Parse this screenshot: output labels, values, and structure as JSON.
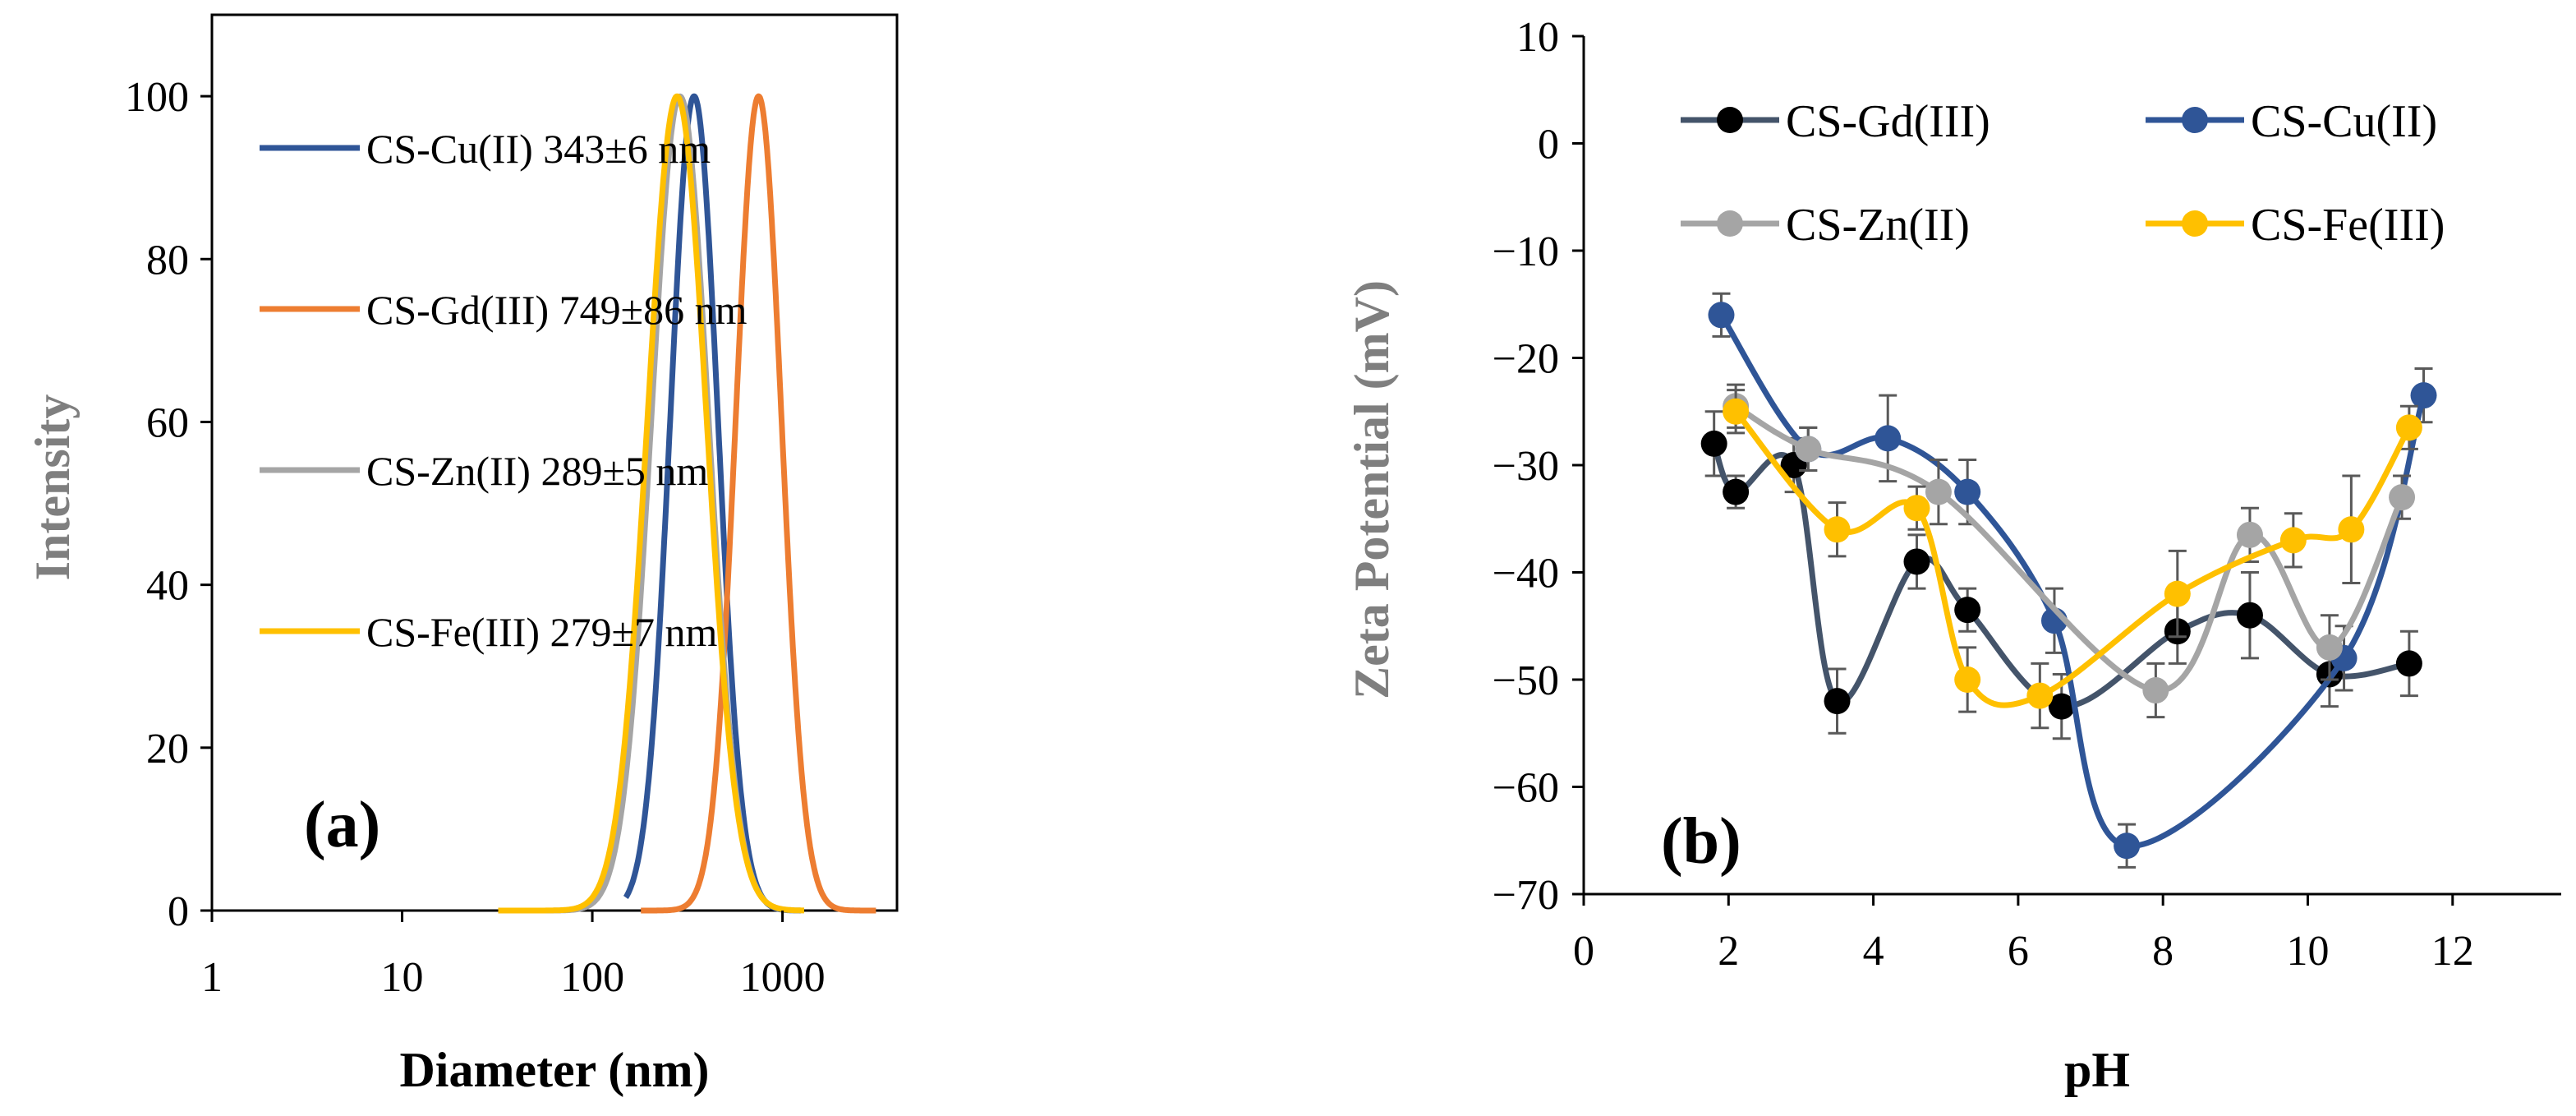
{
  "chart_data": [
    {
      "type": "line",
      "panel_label": "(a)",
      "xlabel": "Diameter (nm)",
      "ylabel": "Intensity",
      "x_scale": "log",
      "xlim": [
        1,
        4000
      ],
      "ylim": [
        0,
        110
      ],
      "x_ticks": [
        1,
        10,
        100,
        1000
      ],
      "x_tick_labels": [
        "1",
        "10",
        "100",
        "1000"
      ],
      "y_ticks": [
        0,
        20,
        40,
        60,
        80,
        100
      ],
      "y_tick_labels": [
        "0",
        "20",
        "40",
        "60",
        "80",
        "100"
      ],
      "grid": false,
      "legend_position": "top-left",
      "series": [
        {
          "name": "CS-Cu(II) 343±6 nm",
          "color": "#2F5597",
          "peak": 343,
          "x_range": [
            150,
            1250
          ],
          "log_sigma": 0.125
        },
        {
          "name": "CS-Gd(III) 749±86 nm",
          "color": "#ED7D31",
          "peak": 749,
          "x_range": [
            180,
            3100
          ],
          "log_sigma": 0.12
        },
        {
          "name": "CS-Zn(II) 289±5 nm",
          "color": "#A5A5A5",
          "peak": 289,
          "x_range": [
            40,
            1150
          ],
          "log_sigma": 0.15
        },
        {
          "name": "CS-Fe(III) 279±7 nm",
          "color": "#FFC000",
          "peak": 279,
          "x_range": [
            32,
            1300
          ],
          "log_sigma": 0.155
        }
      ]
    },
    {
      "type": "line",
      "panel_label": "(b)",
      "xlabel": "pH",
      "ylabel": "Zeta Potential (mV)",
      "xlim": [
        0,
        13.5
      ],
      "ylim": [
        -70,
        10
      ],
      "x_ticks": [
        0,
        2,
        4,
        6,
        8,
        10,
        12
      ],
      "x_tick_labels": [
        "0",
        "2",
        "4",
        "6",
        "8",
        "10",
        "12"
      ],
      "y_ticks": [
        10,
        0,
        -10,
        -20,
        -30,
        -40,
        -50,
        -60,
        -70
      ],
      "y_tick_labels": [
        "10",
        "0",
        "−10",
        "−20",
        "−30",
        "−40",
        "−50",
        "−60",
        "−70"
      ],
      "grid": false,
      "legend_position": "top",
      "series": [
        {
          "name": "CS-Gd(III)",
          "color": "#44546A",
          "marker_color": "#000000",
          "x": [
            1.8,
            2.1,
            2.9,
            3.5,
            4.6,
            5.3,
            6.6,
            8.2,
            9.2,
            10.3,
            11.4
          ],
          "y": [
            -28,
            -32.5,
            -30,
            -52,
            -39,
            -43.5,
            -52.5,
            -45.5,
            -44,
            -49.5,
            -48.5
          ],
          "err": [
            3,
            1.5,
            2.5,
            3,
            2.5,
            2,
            3,
            3,
            4,
            3,
            3
          ]
        },
        {
          "name": "CS-Cu(II)",
          "color": "#2F5597",
          "marker_color": "#2F5597",
          "x": [
            1.9,
            3.1,
            4.2,
            5.3,
            6.5,
            7.5,
            10.5,
            11.6
          ],
          "y": [
            -16,
            -28.5,
            -27.5,
            -32.5,
            -44.5,
            -65.5,
            -48,
            -23.5
          ],
          "err": [
            2,
            2,
            4,
            3,
            3,
            2,
            3,
            2.5
          ]
        },
        {
          "name": "CS-Zn(II)",
          "color": "#A5A5A5",
          "marker_color": "#A5A5A5",
          "x": [
            2.1,
            3.1,
            4.9,
            7.9,
            9.2,
            10.3,
            11.3
          ],
          "y": [
            -24.5,
            -28.5,
            -32.5,
            -51,
            -36.5,
            -47,
            -33
          ],
          "err": [
            2,
            2,
            3,
            2.5,
            2.5,
            3,
            2
          ]
        },
        {
          "name": "CS-Fe(III)",
          "color": "#FFC000",
          "marker_color": "#FFC000",
          "x": [
            2.1,
            3.5,
            4.6,
            5.3,
            6.3,
            8.2,
            9.8,
            10.6,
            11.4
          ],
          "y": [
            -25,
            -36,
            -34,
            -50,
            -51.5,
            -42,
            -37,
            -36,
            -26.5
          ],
          "err": [
            2,
            2.5,
            2,
            3,
            3,
            4,
            2.5,
            5,
            2
          ]
        }
      ]
    }
  ]
}
